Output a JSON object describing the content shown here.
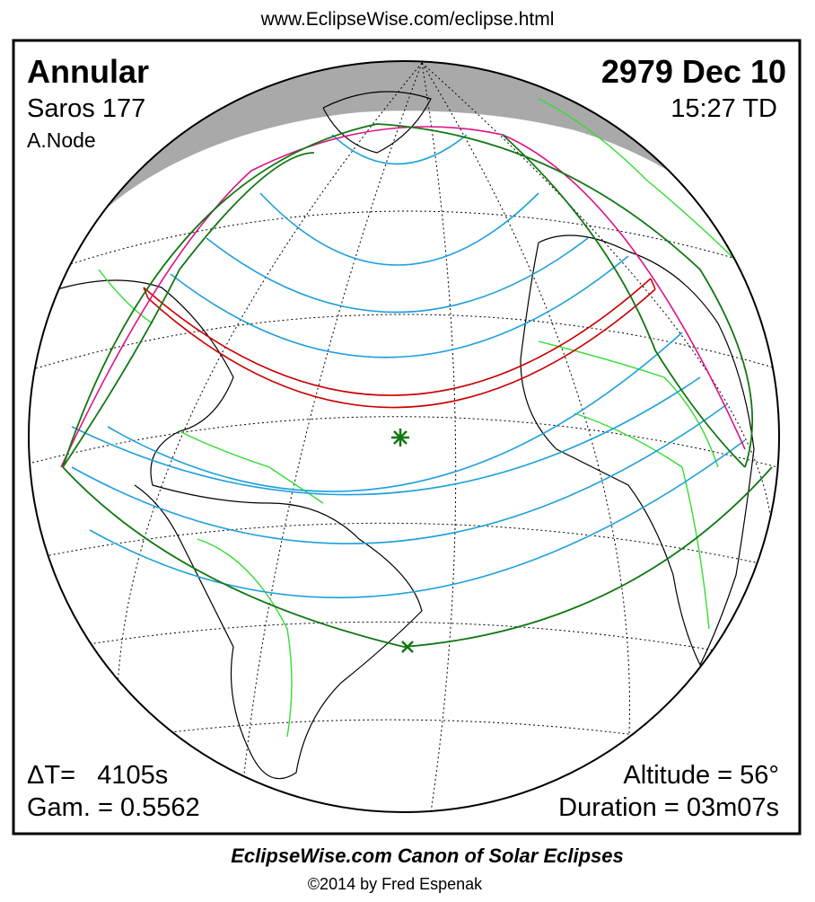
{
  "header": {
    "url": "www.EclipseWise.com/eclipse.html"
  },
  "panel": {
    "eclipse_type": "Annular",
    "saros": "Saros 177",
    "node": "A.Node",
    "date": "2979 Dec 10",
    "time": "15:27 TD",
    "delta_t": "ΔT=   4105s",
    "gamma": "Gam. = 0.5562",
    "altitude": "Altitude = 56°",
    "duration": "Duration = 03m07s"
  },
  "footer": {
    "title": "EclipseWise.com Canon of Solar Eclipses",
    "copyright": "©2014 by Fred Espenak"
  }
}
